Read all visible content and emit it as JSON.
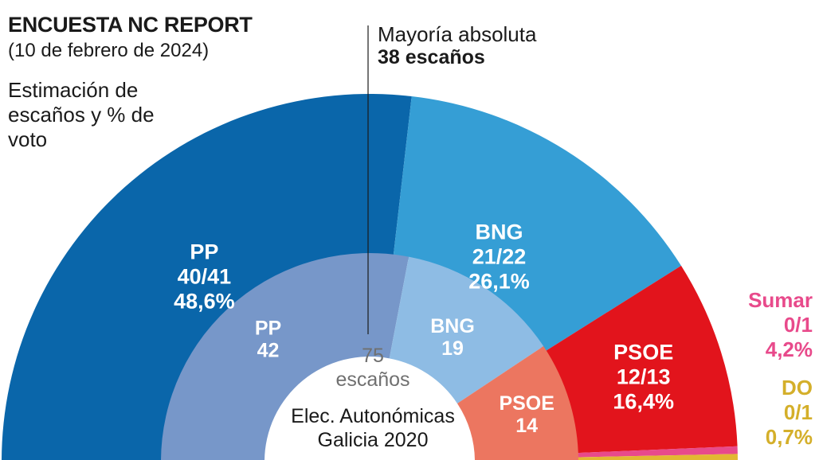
{
  "title": "ENCUESTA NC REPORT",
  "subtitle": "(10 de febrero de 2024)",
  "description": "Estimación de escaños y % de voto",
  "majority": {
    "label": "Mayoría absoluta",
    "value": "38 escaños"
  },
  "center_total": {
    "line1": "75",
    "line2": "escaños"
  },
  "center_caption": {
    "line1": "Elec. Autonómicas",
    "line2": "Galicia 2020"
  },
  "colors": {
    "pp_2024": "#0a66aa",
    "bng_2024": "#359ed5",
    "psoe_2024": "#e2141c",
    "sumar_2024": "#e84a8b",
    "do_2024": "#e2b832",
    "pp_2020": "#7797c9",
    "bng_2020": "#8ebce4",
    "psoe_2020": "#ec7660",
    "text_dark": "#1a1a1a",
    "text_grey": "#707070"
  },
  "chart_data": [
    {
      "type": "pie",
      "variant": "semicircle",
      "total_seats": 75,
      "slices": [
        {
          "name": "PP",
          "seats_label": "40/41",
          "seats": 40.5,
          "pct_label": "48,6%",
          "pct": 48.6,
          "color": "#0a66aa",
          "label_color": "#ffffff"
        },
        {
          "name": "BNG",
          "seats_label": "21/22",
          "seats": 21.5,
          "pct_label": "26,1%",
          "pct": 26.1,
          "color": "#359ed5",
          "label_color": "#ffffff"
        },
        {
          "name": "PSOE",
          "seats_label": "12/13",
          "seats": 12.5,
          "pct_label": "16,4%",
          "pct": 16.4,
          "color": "#e2141c",
          "label_color": "#ffffff"
        },
        {
          "name": "Sumar",
          "seats_label": "0/1",
          "seats": 0.5,
          "pct_label": "4,2%",
          "pct": 4.2,
          "color": "#e84a8b",
          "label_color": "#e84a8b"
        },
        {
          "name": "DO",
          "seats_label": "0/1",
          "seats": 0.5,
          "pct_label": "0,7%",
          "pct": 0.7,
          "color": "#e2b832",
          "label_color": "#d4af2a"
        }
      ]
    },
    {
      "type": "pie",
      "variant": "semicircle",
      "total_seats": 75,
      "slices": [
        {
          "name": "PP",
          "seats_label": "42",
          "seats": 42,
          "color": "#7797c9",
          "label_color": "#ffffff"
        },
        {
          "name": "BNG",
          "seats_label": "19",
          "seats": 19,
          "color": "#8ebce4",
          "label_color": "#ffffff"
        },
        {
          "name": "PSOE",
          "seats_label": "14",
          "seats": 14,
          "color": "#ec7660",
          "label_color": "#ffffff"
        }
      ]
    }
  ]
}
